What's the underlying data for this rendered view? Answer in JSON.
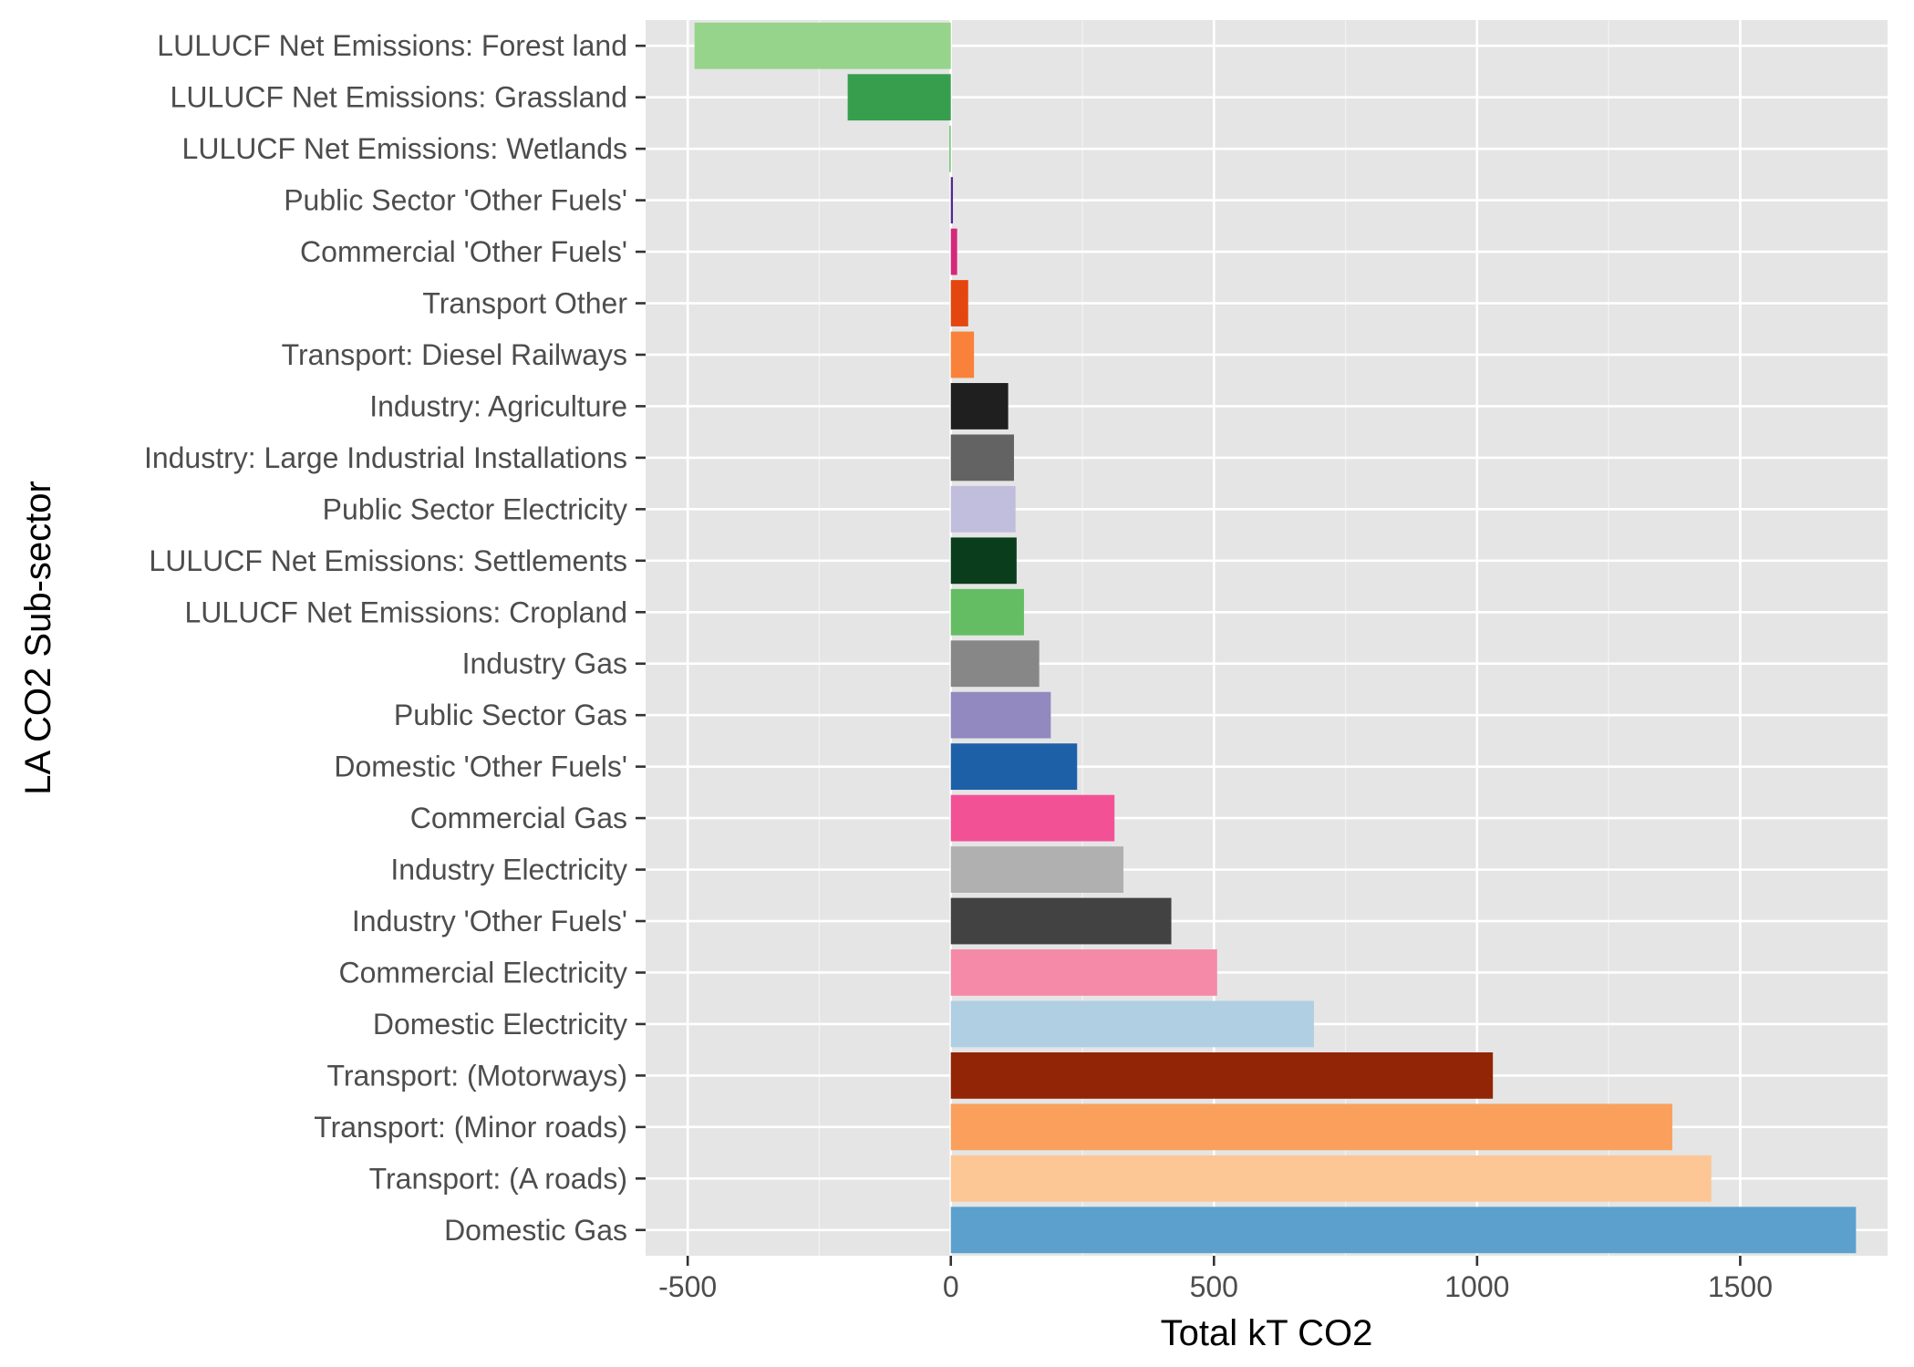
{
  "chart_data": {
    "type": "bar",
    "orientation": "horizontal",
    "xlabel": "Total kT CO2",
    "ylabel": "LA CO2 Sub-sector",
    "xlim": [
      -580,
      1780
    ],
    "xticks": [
      -500,
      0,
      500,
      1000,
      1500
    ],
    "xtick_labels": [
      "-500",
      "0",
      "500",
      "1000",
      "1500"
    ],
    "grid": true,
    "background": "#e5e5e5",
    "categories": [
      "LULUCF Net Emissions: Forest land",
      "LULUCF Net Emissions: Grassland",
      "LULUCF Net Emissions: Wetlands",
      "Public Sector 'Other Fuels'",
      "Commercial 'Other Fuels'",
      "Transport Other",
      "Transport: Diesel Railways",
      "Industry: Agriculture",
      "Industry: Large Industrial Installations",
      "Public Sector Electricity",
      "LULUCF Net Emissions: Settlements",
      "LULUCF Net Emissions: Cropland",
      "Industry Gas",
      "Public Sector Gas",
      "Domestic 'Other Fuels'",
      "Commercial Gas",
      "Industry Electricity",
      "Industry 'Other Fuels'",
      "Commercial Electricity",
      "Domestic Electricity",
      "Transport: (Motorways)",
      "Transport: (Minor roads)",
      "Transport: (A roads)",
      "Domestic Gas"
    ],
    "values": [
      -487,
      -196,
      -3,
      4,
      12,
      33,
      44,
      109,
      120,
      123,
      125,
      139,
      168,
      190,
      240,
      311,
      328,
      419,
      506,
      690,
      1030,
      1371,
      1445,
      1720
    ],
    "colors": [
      "#95d48a",
      "#379e4d",
      "#7fc97f",
      "#54278f",
      "#d4287c",
      "#e3470f",
      "#f9813a",
      "#1f1f1f",
      "#636363",
      "#c1bedd",
      "#0a3d1c",
      "#64bd63",
      "#878787",
      "#9189c0",
      "#1e60a8",
      "#f25196",
      "#b0b0b0",
      "#424242",
      "#f48aa8",
      "#b0cfe3",
      "#922506",
      "#faa05c",
      "#fcc795",
      "#5ca0ce"
    ]
  }
}
